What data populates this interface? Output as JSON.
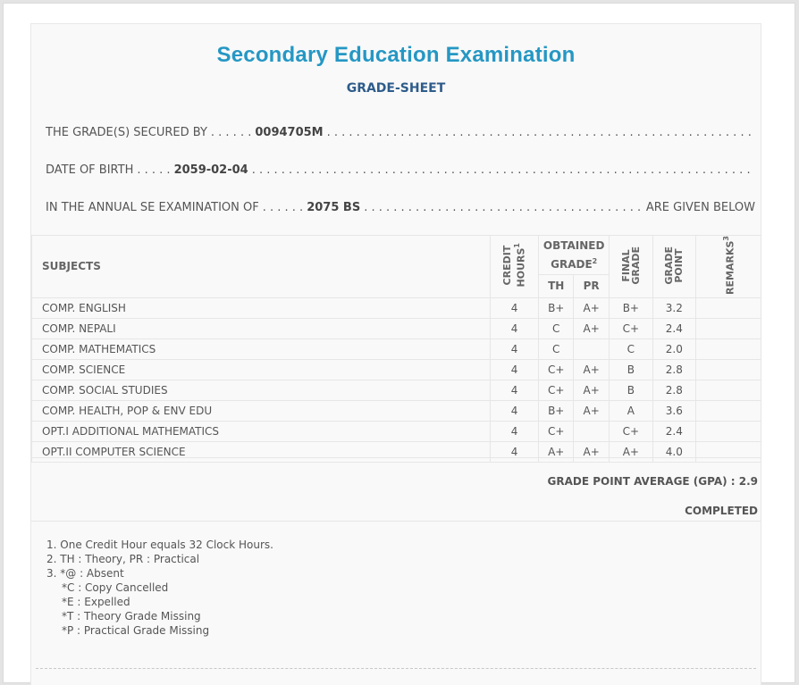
{
  "header": {
    "title": "Secondary Education Examination",
    "subtitle": "GRADE-SHEET"
  },
  "info": {
    "secured_by_label": "THE GRADE(S) SECURED BY",
    "secured_by_lead": ". . . . . .",
    "symbol_no": "0094705M",
    "dob_label": "DATE OF BIRTH",
    "dob_lead": ". . . . .",
    "dob": "2059-02-04",
    "exam_label": "IN THE ANNUAL SE EXAMINATION OF",
    "exam_lead": ". . . . . .",
    "exam_year": "2075 BS",
    "exam_tail": "ARE GIVEN BELOW"
  },
  "table": {
    "headers": {
      "subjects": "SUBJECTS",
      "credit_hours_line1": "CREDIT",
      "credit_hours_line2": "HOURS",
      "credit_hours_sup": "1",
      "obtained_grade_line1": "OBTAINED",
      "obtained_grade_line2": "GRADE",
      "obtained_grade_sup": "2",
      "th": "TH",
      "pr": "PR",
      "final_grade_line1": "FINAL",
      "final_grade_line2": "GRADE",
      "grade_point_line1": "GRADE",
      "grade_point_line2": "POINT",
      "remarks": "REMARKS",
      "remarks_sup": "3"
    },
    "rows": [
      {
        "subject": "COMP. ENGLISH",
        "credit": "4",
        "th": "B+",
        "pr": "A+",
        "final": "B+",
        "gp": "3.2",
        "remarks": ""
      },
      {
        "subject": "COMP. NEPALI",
        "credit": "4",
        "th": "C",
        "pr": "A+",
        "final": "C+",
        "gp": "2.4",
        "remarks": ""
      },
      {
        "subject": "COMP. MATHEMATICS",
        "credit": "4",
        "th": "C",
        "pr": "",
        "final": "C",
        "gp": "2.0",
        "remarks": ""
      },
      {
        "subject": "COMP. SCIENCE",
        "credit": "4",
        "th": "C+",
        "pr": "A+",
        "final": "B",
        "gp": "2.8",
        "remarks": ""
      },
      {
        "subject": "COMP. SOCIAL STUDIES",
        "credit": "4",
        "th": "C+",
        "pr": "A+",
        "final": "B",
        "gp": "2.8",
        "remarks": ""
      },
      {
        "subject": "COMP. HEALTH, POP & ENV EDU",
        "credit": "4",
        "th": "B+",
        "pr": "A+",
        "final": "A",
        "gp": "3.6",
        "remarks": ""
      },
      {
        "subject": "OPT.I ADDITIONAL MATHEMATICS",
        "credit": "4",
        "th": "C+",
        "pr": "",
        "final": "C+",
        "gp": "2.4",
        "remarks": ""
      },
      {
        "subject": "OPT.II COMPUTER SCIENCE",
        "credit": "4",
        "th": "A+",
        "pr": "A+",
        "final": "A+",
        "gp": "4.0",
        "remarks": ""
      }
    ]
  },
  "summary": {
    "gpa_text": "GRADE POINT AVERAGE (GPA) : 2.9",
    "status": "COMPLETED"
  },
  "notes": [
    {
      "text": "1. One Credit Hour equals 32 Clock Hours.",
      "indent": false
    },
    {
      "text": "2. TH : Theory, PR : Practical",
      "indent": false
    },
    {
      "text": "3. *@ : Absent",
      "indent": false
    },
    {
      "text": "*C : Copy Cancelled",
      "indent": true
    },
    {
      "text": "*E : Expelled",
      "indent": true
    },
    {
      "text": "*T : Theory Grade Missing",
      "indent": true
    },
    {
      "text": "*P : Practical Grade Missing",
      "indent": true
    }
  ]
}
